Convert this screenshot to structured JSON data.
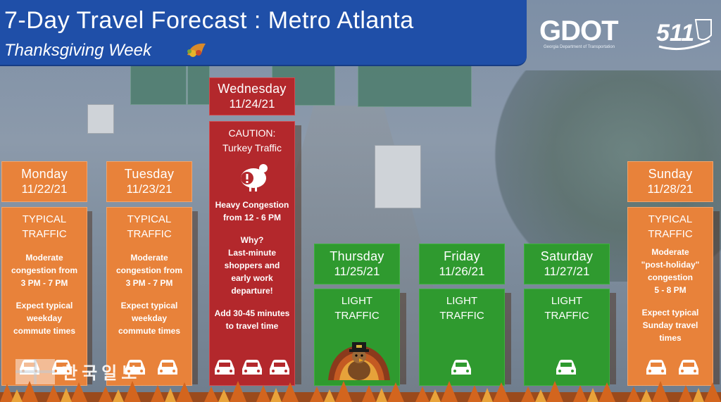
{
  "header": {
    "title": "7-Day Travel Forecast : Metro Atlanta",
    "subtitle": "Thanksgiving Week",
    "logos": {
      "gdot": "GDOT",
      "gdot_sub": "Georgia Department of Transportation",
      "five11": "511"
    }
  },
  "colors": {
    "header_blue": "#1f4fa8",
    "typical_orange": "#e8823a",
    "light_green": "#2f9a2f",
    "caution_red": "#b3282c"
  },
  "days": [
    {
      "day": "Monday",
      "date": "11/22/21",
      "level": [
        "TYPICAL",
        "TRAFFIC"
      ],
      "details": [
        "Moderate",
        "congestion from",
        "3 PM - 7 PM"
      ],
      "extra": [
        "Expect typical",
        "weekday",
        "commute times"
      ],
      "cars": 2,
      "icon": "car-icon"
    },
    {
      "day": "Tuesday",
      "date": "11/23/21",
      "level": [
        "TYPICAL",
        "TRAFFIC"
      ],
      "details": [
        "Moderate",
        "congestion from",
        "3 PM - 7 PM"
      ],
      "extra": [
        "Expect typical",
        "weekday",
        "commute times"
      ],
      "cars": 2,
      "icon": "car-icon"
    },
    {
      "day": "Wednesday",
      "date": "11/24/21",
      "level": [
        "CAUTION:",
        "Turkey Traffic"
      ],
      "details": [
        "Heavy Congestion",
        "from 12 - 6 PM"
      ],
      "why": [
        "Why?",
        "Last-minute",
        "shoppers and",
        "early work",
        "departure!"
      ],
      "extra": [
        "Add 30-45 minutes",
        "to travel time"
      ],
      "cars": 3,
      "icon": "turkey-warning-icon"
    },
    {
      "day": "Thursday",
      "date": "11/25/21",
      "level": [
        "LIGHT",
        "TRAFFIC"
      ],
      "cars": 0,
      "icon": "turkey-pilgrim-icon"
    },
    {
      "day": "Friday",
      "date": "11/26/21",
      "level": [
        "LIGHT",
        "TRAFFIC"
      ],
      "cars": 1,
      "icon": "car-icon"
    },
    {
      "day": "Saturday",
      "date": "11/27/21",
      "level": [
        "LIGHT",
        "TRAFFIC"
      ],
      "cars": 1,
      "icon": "car-icon"
    },
    {
      "day": "Sunday",
      "date": "11/28/21",
      "level": [
        "TYPICAL",
        "TRAFFIC"
      ],
      "details": [
        "Moderate",
        "\"post-holiday\"",
        "congestion",
        "5 - 8 PM"
      ],
      "extra": [
        "Expect typical",
        "Sunday travel",
        "times"
      ],
      "cars": 2,
      "icon": "car-icon"
    }
  ],
  "watermark": "한국일보"
}
